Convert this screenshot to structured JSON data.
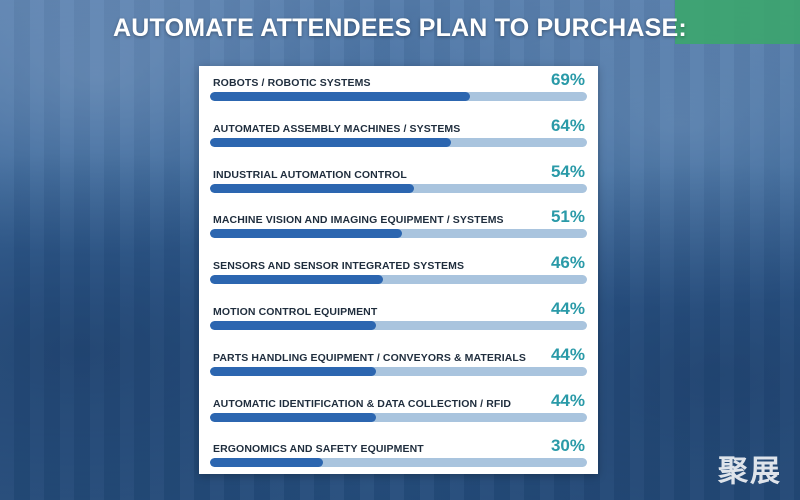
{
  "title": "AUTOMATE ATTENDEES PLAN TO PURCHASE:",
  "watermark": "聚展",
  "colors": {
    "bar_fill": "#2c66b0",
    "bar_track": "#a9c4de",
    "value_text": "#2a9aa8",
    "panel": "#ffffff"
  },
  "chart_data": {
    "type": "bar",
    "orientation": "horizontal",
    "title": "AUTOMATE ATTENDEES PLAN TO PURCHASE:",
    "xlim": [
      0,
      100
    ],
    "unit": "%",
    "categories": [
      "ROBOTS / ROBOTIC SYSTEMS",
      "AUTOMATED ASSEMBLY MACHINES / SYSTEMS",
      "INDUSTRIAL AUTOMATION CONTROL",
      "MACHINE VISION AND IMAGING EQUIPMENT / SYSTEMS",
      "SENSORS AND SENSOR INTEGRATED SYSTEMS",
      "MOTION CONTROL EQUIPMENT",
      "PARTS HANDLING EQUIPMENT / CONVEYORS & MATERIALS",
      "AUTOMATIC IDENTIFICATION & DATA COLLECTION / RFID",
      "ERGONOMICS AND SAFETY EQUIPMENT"
    ],
    "values": [
      69,
      64,
      54,
      51,
      46,
      44,
      44,
      44,
      30
    ],
    "value_labels": [
      "69%",
      "64%",
      "54%",
      "51%",
      "46%",
      "44%",
      "44%",
      "44%",
      "30%"
    ],
    "grid": false,
    "legend": "none"
  }
}
